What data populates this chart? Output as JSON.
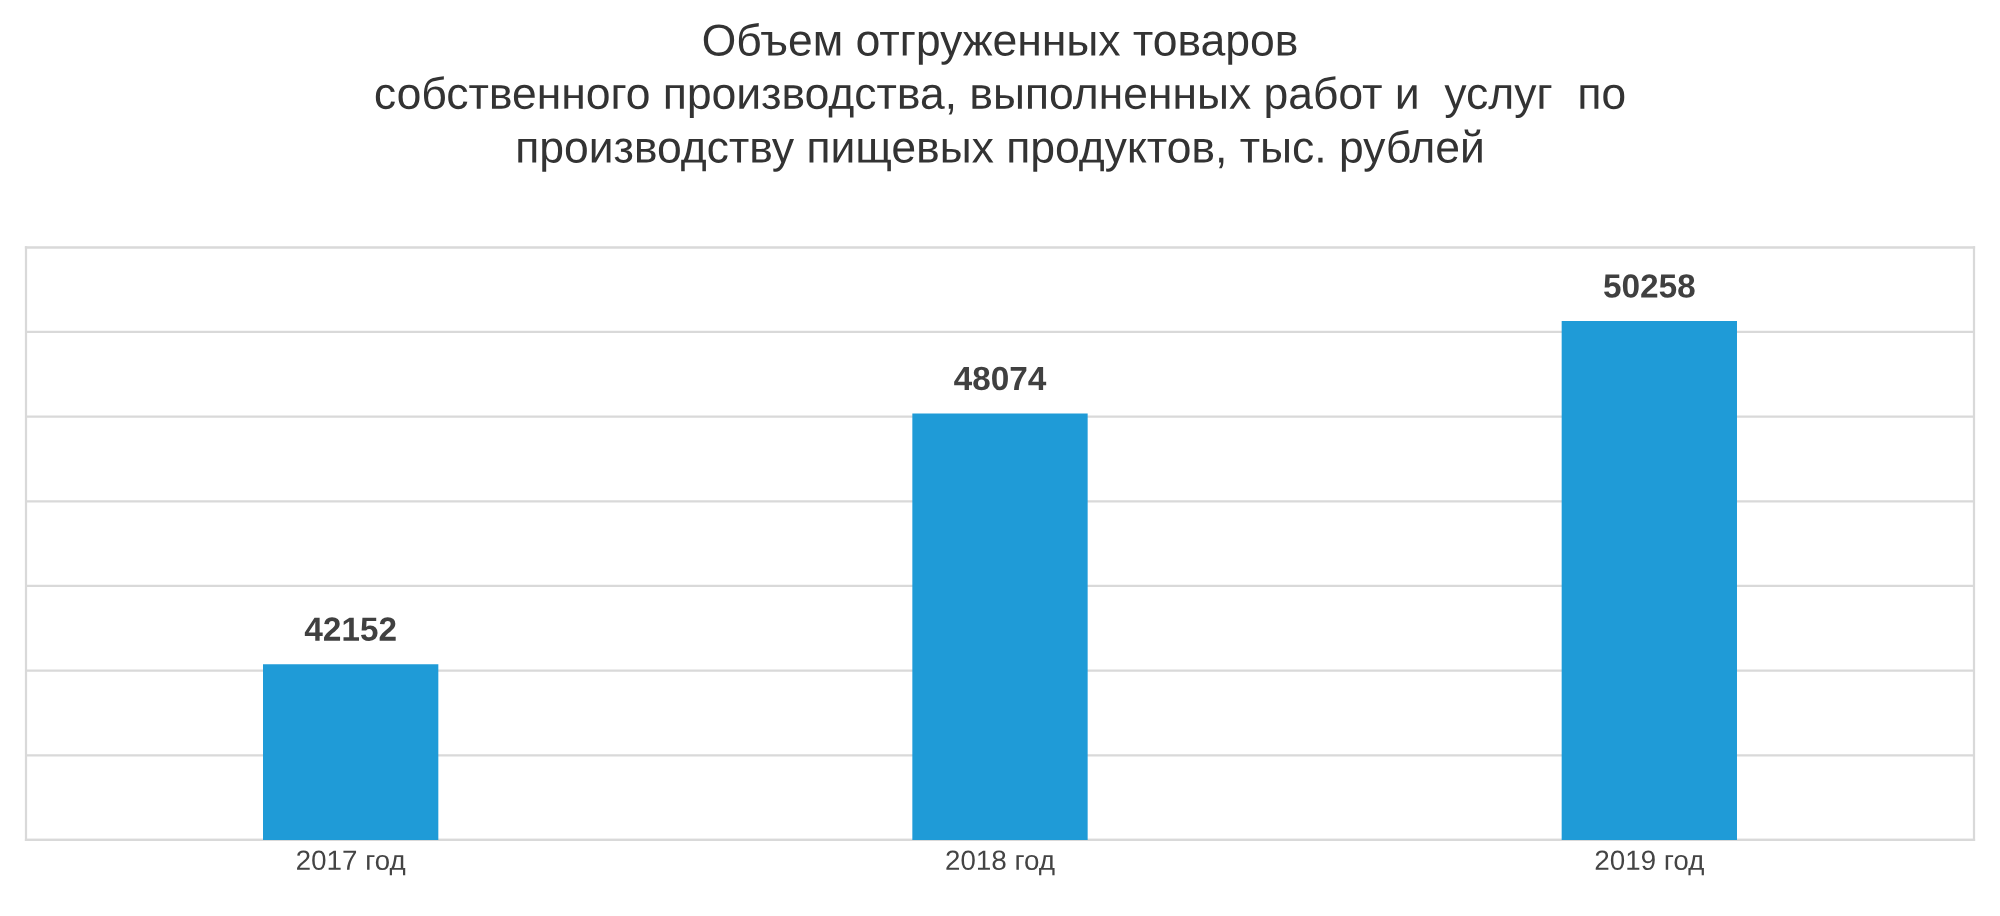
{
  "chart_data": {
    "type": "bar",
    "title": "Объем отгруженных товаров\nсобственного производства, выполненных работ и  услуг  по\nпроизводству пищевых продуктов, тыс. рублей",
    "categories": [
      "2017 год",
      "2018 год",
      "2019 год"
    ],
    "values": [
      42152,
      48074,
      50258
    ],
    "color": "#1f9bd7",
    "data_labels": true,
    "ylim": [
      38000,
      52000
    ],
    "yticks": [
      {
        "value": 38000,
        "label": null
      },
      {
        "value": 40000,
        "label": null
      },
      {
        "value": 42000,
        "label": null
      },
      {
        "value": 44000,
        "label": null
      },
      {
        "value": 46000,
        "label": null
      },
      {
        "value": 48000,
        "label": null
      },
      {
        "value": 50000,
        "label": null
      },
      {
        "value": 52000,
        "label": null
      }
    ],
    "tick_labels": "x",
    "grid": "y"
  }
}
